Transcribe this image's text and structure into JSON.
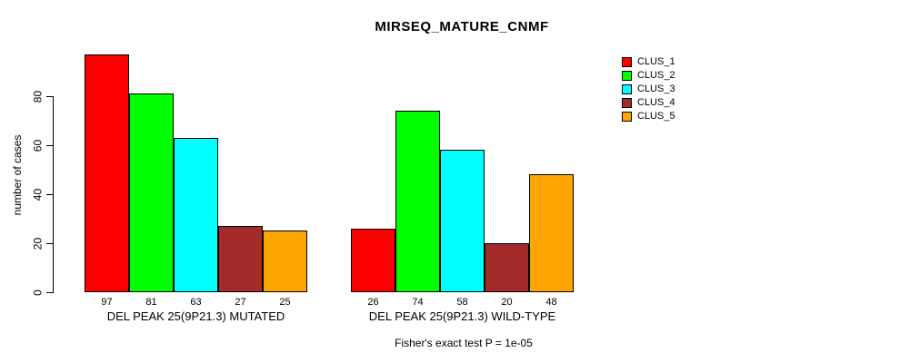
{
  "chart_data": {
    "type": "bar",
    "title": "MIRSEQ_MATURE_CNMF",
    "ylabel": "number of cases",
    "xlabel": "",
    "ylim": [
      0,
      80
    ],
    "yticks": [
      0,
      20,
      40,
      60,
      80
    ],
    "grid": false,
    "legend_position": "top-right",
    "bar_value_labels": true,
    "categories": [
      "DEL PEAK 25(9P21.3) MUTATED",
      "DEL PEAK 25(9P21.3) WILD-TYPE"
    ],
    "series": [
      {
        "name": "CLUS_1",
        "color": "#FF0000",
        "values": [
          97,
          26
        ]
      },
      {
        "name": "CLUS_2",
        "color": "#00FF00",
        "values": [
          81,
          74
        ]
      },
      {
        "name": "CLUS_3",
        "color": "#00FFFF",
        "values": [
          63,
          58
        ]
      },
      {
        "name": "CLUS_4",
        "color": "#A52A2A",
        "values": [
          27,
          20
        ]
      },
      {
        "name": "CLUS_5",
        "color": "#FFA500",
        "values": [
          25,
          48
        ]
      }
    ],
    "footnote": "Fisher's exact test P = 1e-05"
  },
  "colors": {
    "background": "#FFFFFF",
    "axis": "#000000",
    "text": "#000000"
  }
}
